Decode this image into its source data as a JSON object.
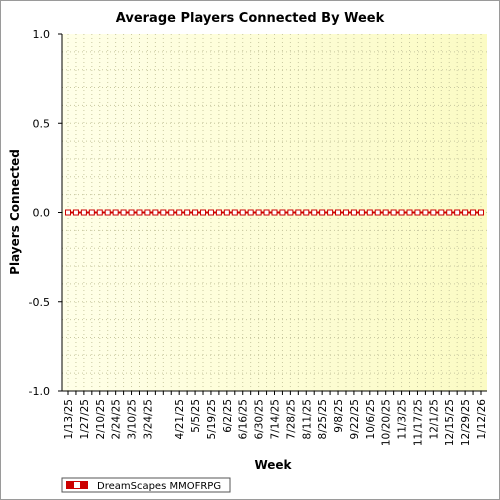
{
  "chart_data": {
    "type": "line",
    "title": "Average Players Connected By Week",
    "xlabel": "Week",
    "ylabel": "Players Connected",
    "ylim": [
      -1.0,
      1.0
    ],
    "yticks": [
      "1.0",
      "0.5",
      "0.0",
      "-0.5",
      "-1.0"
    ],
    "ytick_values": [
      1.0,
      0.5,
      0.0,
      -0.5,
      -1.0
    ],
    "x": [
      "1/13/25",
      "1/20/25",
      "1/27/25",
      "2/3/25",
      "2/10/25",
      "2/17/25",
      "2/24/25",
      "3/3/25",
      "3/10/25",
      "3/17/25",
      "3/24/25",
      "3/31/25",
      "4/7/25",
      "4/14/25",
      "4/21/25",
      "4/28/25",
      "5/5/25",
      "5/12/25",
      "5/19/25",
      "5/26/25",
      "6/2/25",
      "6/9/25",
      "6/16/25",
      "6/23/25",
      "6/30/25",
      "7/7/25",
      "7/14/25",
      "7/21/25",
      "7/28/25",
      "8/4/25",
      "8/11/25",
      "8/18/25",
      "8/25/25",
      "9/1/25",
      "9/8/25",
      "9/15/25",
      "9/22/25",
      "9/29/25",
      "10/6/25",
      "10/13/25",
      "10/20/25",
      "10/27/25",
      "11/3/25",
      "11/10/25",
      "11/17/25",
      "11/24/25",
      "12/1/25",
      "12/8/25",
      "12/15/25",
      "12/22/25",
      "12/29/25",
      "1/5/26",
      "1/12/26"
    ],
    "x_labels_shown": [
      "1/13/25",
      "1/27/25",
      "2/10/25",
      "2/24/25",
      "3/10/25",
      "3/24/25",
      "4/21/25",
      "5/5/25",
      "5/19/25",
      "6/2/25",
      "6/16/25",
      "6/30/25",
      "7/14/25",
      "7/28/25",
      "8/11/25",
      "8/25/25",
      "9/8/25",
      "9/22/25",
      "10/6/25",
      "10/20/25",
      "11/3/25",
      "11/17/25",
      "12/1/25",
      "12/15/25",
      "12/29/25",
      "1/12/26"
    ],
    "series": [
      {
        "name": "DreamScapes MMOFRPG",
        "values": [
          0,
          0,
          0,
          0,
          0,
          0,
          0,
          0,
          0,
          0,
          0,
          0,
          0,
          0,
          0,
          0,
          0,
          0,
          0,
          0,
          0,
          0,
          0,
          0,
          0,
          0,
          0,
          0,
          0,
          0,
          0,
          0,
          0,
          0,
          0,
          0,
          0,
          0,
          0,
          0,
          0,
          0,
          0,
          0,
          0,
          0,
          0,
          0,
          0,
          0,
          0,
          0,
          0
        ],
        "color": "#cc0000"
      }
    ],
    "grid": true,
    "legend_position": "bottom-left",
    "plot_background": [
      "#ffffe8",
      "#fbfbc4"
    ]
  }
}
